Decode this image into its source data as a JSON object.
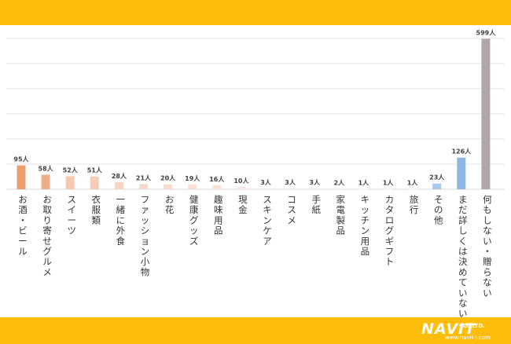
{
  "chart_data": {
    "type": "bar",
    "categories": [
      "お酒・ビール",
      "お取り寄せグルメ",
      "スイーツ",
      "衣服類",
      "一緒に外食",
      "ファッション小物",
      "お花",
      "健康グッズ",
      "趣味用品",
      "現金",
      "スキンケア",
      "コスメ",
      "手紙",
      "家電製品",
      "キッチン用品",
      "カタログギフト",
      "旅行",
      "その他",
      "まだ詳しくは決めていない",
      "何もしない・贈らない"
    ],
    "values": [
      95,
      58,
      52,
      51,
      28,
      21,
      20,
      19,
      16,
      10,
      3,
      3,
      3,
      2,
      1,
      1,
      1,
      23,
      126,
      599
    ],
    "value_labels": [
      "95人",
      "58人",
      "52人",
      "51人",
      "28人",
      "21人",
      "20人",
      "19人",
      "16人",
      "10人",
      "3人",
      "3人",
      "3人",
      "2人",
      "1人",
      "1人",
      "1人",
      "23人",
      "126人",
      "599人"
    ],
    "colors": [
      "#EB9E6E",
      "#EEAF88",
      "#F4C9B0",
      "#F5CDB6",
      "#F6D5C2",
      "#F7DACA",
      "#F8DDCE",
      "#F8DFD1",
      "#F9E2D6",
      "#F9E6DC",
      "#FAEAE1",
      "#FAEAE1",
      "#FAEAE1",
      "#FAEBE3",
      "#FBEDE6",
      "#FBEDE6",
      "#FBEDE6",
      "#A8C8EA",
      "#8EB6E4",
      "#AFA6A7"
    ],
    "ylim": [
      0,
      650
    ],
    "grid": true,
    "unit": "人"
  },
  "logo": {
    "name": "NAVIT",
    "sub": "CO.,LTD.",
    "url": "www.navit-j.com"
  }
}
